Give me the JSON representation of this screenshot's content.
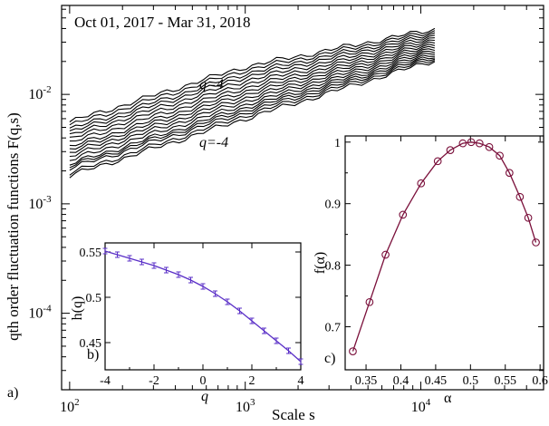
{
  "chart_data": [
    {
      "panel": "a)",
      "type": "line",
      "scale": "log-log",
      "annotation": "Oct 01, 2017 -  Mar 31, 2018",
      "xlabel": "Scale s",
      "ylabel": "qth order fluctuation functions F(q,s)",
      "xlim": [
        90,
        50000
      ],
      "ylim": [
        2e-05,
        0.065
      ],
      "x_ticks": [
        "10^2",
        "10^3",
        "10^4"
      ],
      "y_ticks": [
        "10^-4",
        "10^-3",
        "10^-2"
      ],
      "q_top_label": "q=4",
      "q_bottom_label": "q=-4",
      "series": [
        {
          "q": 4,
          "points": [
            [
              100,
              0.0056
            ],
            [
              1000,
              0.0179
            ],
            [
              12000,
              0.0395
            ]
          ]
        },
        {
          "q": 3.5,
          "points": [
            [
              100,
              0.0052
            ],
            [
              1000,
              0.0167
            ],
            [
              12000,
              0.0378
            ]
          ]
        },
        {
          "q": 3,
          "points": [
            [
              100,
              0.0048
            ],
            [
              1000,
              0.0155
            ],
            [
              12000,
              0.0362
            ]
          ]
        },
        {
          "q": 2.5,
          "points": [
            [
              100,
              0.0045
            ],
            [
              1000,
              0.0145
            ],
            [
              12000,
              0.0347
            ]
          ]
        },
        {
          "q": 2,
          "points": [
            [
              100,
              0.0042
            ],
            [
              1000,
              0.0134
            ],
            [
              12000,
              0.0332
            ]
          ]
        },
        {
          "q": 1.5,
          "points": [
            [
              100,
              0.0039
            ],
            [
              1000,
              0.0124
            ],
            [
              12000,
              0.0318
            ]
          ]
        },
        {
          "q": 1,
          "points": [
            [
              100,
              0.0036
            ],
            [
              1000,
              0.0115
            ],
            [
              12000,
              0.0305
            ]
          ]
        },
        {
          "q": 0.5,
          "points": [
            [
              100,
              0.0033
            ],
            [
              1000,
              0.0107
            ],
            [
              12000,
              0.0292
            ]
          ]
        },
        {
          "q": 0,
          "points": [
            [
              100,
              0.0031
            ],
            [
              1000,
              0.01
            ],
            [
              12000,
              0.028
            ]
          ]
        },
        {
          "q": -0.5,
          "points": [
            [
              100,
              0.0029
            ],
            [
              1000,
              0.0093
            ],
            [
              12000,
              0.0269
            ]
          ]
        },
        {
          "q": -1,
          "points": [
            [
              100,
              0.0027
            ],
            [
              1000,
              0.0087
            ],
            [
              12000,
              0.0258
            ]
          ]
        },
        {
          "q": -1.5,
          "points": [
            [
              100,
              0.0025
            ],
            [
              1000,
              0.0081
            ],
            [
              12000,
              0.0248
            ]
          ]
        },
        {
          "q": -2,
          "points": [
            [
              100,
              0.0023
            ],
            [
              1000,
              0.0076
            ],
            [
              12000,
              0.0238
            ]
          ]
        },
        {
          "q": -2.5,
          "points": [
            [
              100,
              0.0022
            ],
            [
              1000,
              0.0072
            ],
            [
              12000,
              0.0229
            ]
          ]
        },
        {
          "q": -3,
          "points": [
            [
              100,
              0.0021
            ],
            [
              1000,
              0.0068
            ],
            [
              12000,
              0.0221
            ]
          ]
        },
        {
          "q": -3.5,
          "points": [
            [
              100,
              0.0019
            ],
            [
              1000,
              0.0064
            ],
            [
              12000,
              0.0213
            ]
          ]
        },
        {
          "q": -4,
          "points": [
            [
              100,
              0.0018
            ],
            [
              1000,
              0.006
            ],
            [
              12000,
              0.0205
            ]
          ]
        }
      ],
      "color": "#000000"
    },
    {
      "panel": "b)",
      "type": "line",
      "xlabel": "q",
      "ylabel": "h(q)",
      "xlim": [
        -4,
        4
      ],
      "ylim": [
        0.42,
        0.56
      ],
      "x_ticks": [
        "-4",
        "-2",
        "0",
        "2",
        "4"
      ],
      "y_ticks": [
        "0.45",
        "0.5",
        "0.55"
      ],
      "x": [
        -4,
        -3.5,
        -3,
        -2.5,
        -2,
        -1.5,
        -1,
        -0.5,
        0,
        0.5,
        1,
        1.5,
        2,
        2.5,
        3,
        3.5,
        4
      ],
      "values": [
        0.551,
        0.547,
        0.543,
        0.539,
        0.535,
        0.53,
        0.525,
        0.519,
        0.512,
        0.504,
        0.495,
        0.485,
        0.474,
        0.463,
        0.452,
        0.441,
        0.429
      ],
      "error": [
        0.003,
        0.003,
        0.003,
        0.003,
        0.003,
        0.003,
        0.003,
        0.003,
        0.003,
        0.003,
        0.003,
        0.003,
        0.003,
        0.003,
        0.003,
        0.003,
        0.003
      ],
      "color": "#5a2fc7"
    },
    {
      "panel": "c)",
      "type": "line",
      "xlabel": "α",
      "ylabel": "f(α)",
      "xlim": [
        0.32,
        0.605
      ],
      "ylim": [
        0.63,
        1.01
      ],
      "x_ticks": [
        "0.35",
        "0.4",
        "0.45",
        "0.5",
        "0.55",
        "0.6"
      ],
      "y_ticks": [
        "0.7",
        "0.8",
        "0.9",
        "1"
      ],
      "x": [
        0.331,
        0.355,
        0.378,
        0.403,
        0.429,
        0.453,
        0.471,
        0.489,
        0.501,
        0.513,
        0.527,
        0.542,
        0.556,
        0.571,
        0.583,
        0.594
      ],
      "values": [
        0.66,
        0.74,
        0.817,
        0.882,
        0.933,
        0.969,
        0.987,
        0.998,
        1.0,
        0.998,
        0.992,
        0.978,
        0.95,
        0.911,
        0.877,
        0.837
      ],
      "color": "#7a0f3a"
    }
  ],
  "panel_labels": {
    "a": "a)",
    "b": "b)",
    "c": "c)"
  }
}
